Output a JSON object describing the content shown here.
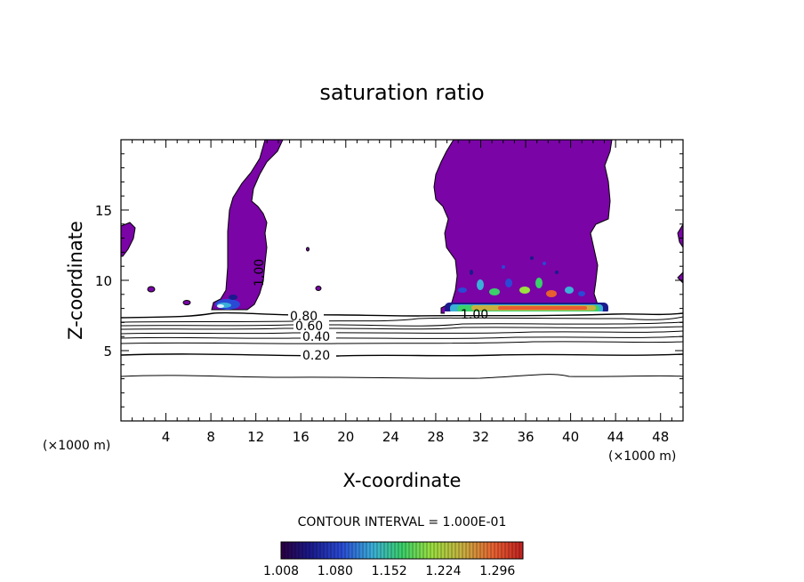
{
  "chart_data": {
    "type": "contour",
    "title": "saturation ratio",
    "xlabel": "X-coordinate",
    "ylabel": "Z-coordinate",
    "x_unit": "(×1000 m)",
    "xlim": [
      0,
      50
    ],
    "ylim": [
      0,
      20
    ],
    "xticks": [
      "4",
      "8",
      "12",
      "16",
      "20",
      "24",
      "28",
      "32",
      "36",
      "40",
      "44",
      "48"
    ],
    "yticks": [
      "5",
      "10",
      "15"
    ],
    "contour_interval_label": "CONTOUR INTERVAL = 1.000E-01",
    "contour_levels": [
      0.2,
      0.3,
      0.4,
      0.5,
      0.6,
      0.7,
      0.8,
      0.9,
      1.0
    ],
    "contour_labels": [
      "0.20",
      "0.40",
      "0.60",
      "0.80",
      "1.00"
    ],
    "filled_region_threshold": 1.0,
    "colorbar": {
      "ticks": [
        "1.008",
        "1.080",
        "1.152",
        "1.224",
        "1.296"
      ],
      "min": 1.008,
      "max": 1.33
    },
    "grid": false
  },
  "colors": {
    "supersaturation": "#7a04a6",
    "contour_line": "#000000"
  }
}
